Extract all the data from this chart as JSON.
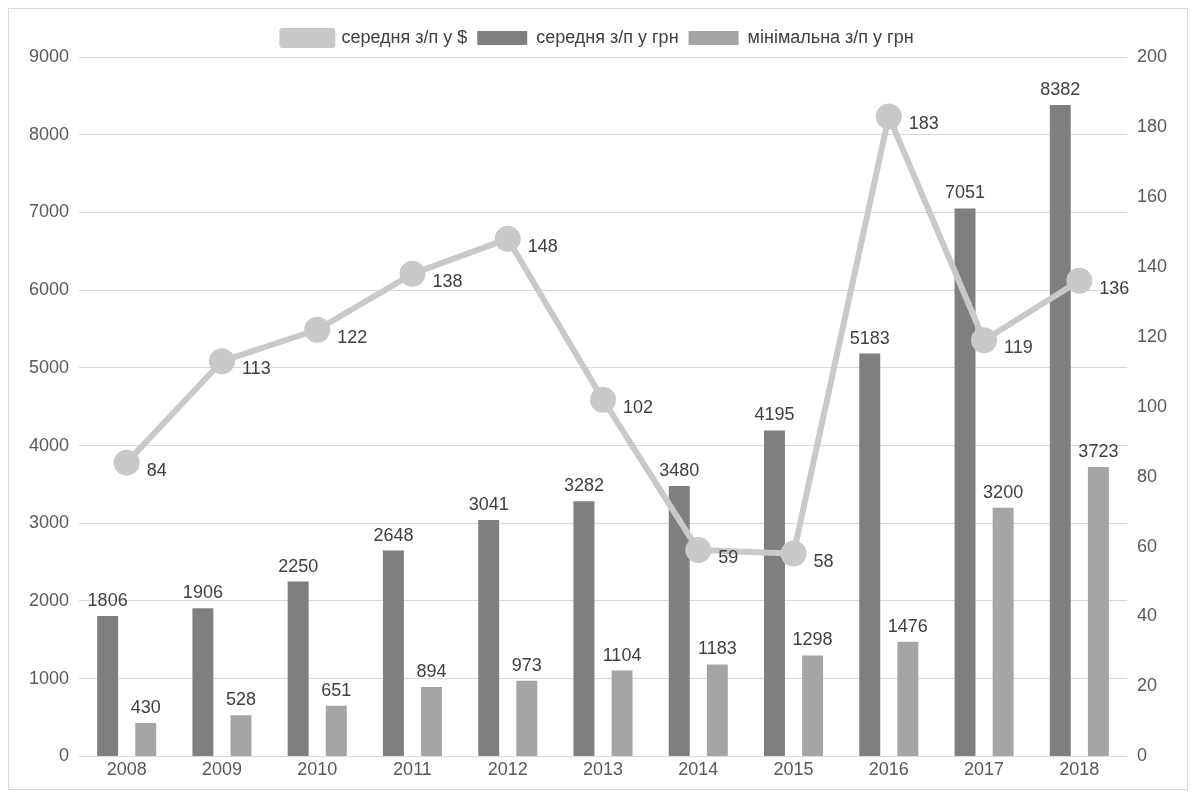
{
  "chart_data": {
    "type": "bar",
    "categories": [
      "2008",
      "2009",
      "2010",
      "2011",
      "2012",
      "2013",
      "2014",
      "2015",
      "2016",
      "2017",
      "2018"
    ],
    "series": [
      {
        "name": "середня з/п у грн",
        "color": "#7f7f7f",
        "values": [
          1806,
          1906,
          2250,
          2648,
          3041,
          3282,
          3480,
          4195,
          5183,
          7051,
          8382
        ]
      },
      {
        "name": "мінімальна з/п у грн",
        "color": "#a5a5a5",
        "values": [
          430,
          528,
          651,
          894,
          973,
          1104,
          1183,
          1298,
          1476,
          3200,
          3723
        ]
      },
      {
        "name": "середня з/п у $",
        "type": "line",
        "axis": "y2",
        "color": "#c9c9c9",
        "values": [
          84,
          113,
          122,
          138,
          148,
          102,
          59,
          58,
          183,
          119,
          136
        ]
      }
    ],
    "ylim": [
      0,
      9000
    ],
    "yticks": [
      0,
      1000,
      2000,
      3000,
      4000,
      5000,
      6000,
      7000,
      8000,
      9000
    ],
    "y2lim": [
      0,
      200
    ],
    "y2ticks": [
      0,
      20,
      40,
      60,
      80,
      100,
      120,
      140,
      160,
      180,
      200
    ],
    "grid": "y",
    "legend": "top",
    "data_labels": true,
    "marker": "circle",
    "line_style": "solid"
  }
}
